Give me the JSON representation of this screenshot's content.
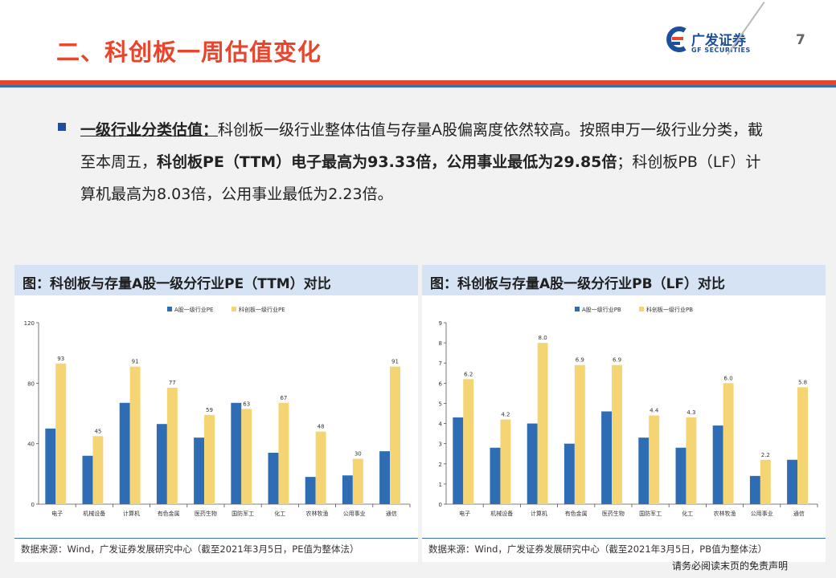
{
  "header": {
    "title": "二、科创板一周估值变化",
    "logo_cn": "广发证券",
    "logo_en": "GF SECURITIES",
    "page_number": "7"
  },
  "bullet": {
    "label": "一级行业分类估值：",
    "text1": "科创板一级行业整体估值与存量A股偏离度依然较高。按照申万一级行业分类，截至本周五，",
    "bold": "科创板PE（TTM）电子最高为93.33倍，公用事业最低为29.85倍",
    "text2": "；科创板PB（LF）计算机最高为8.03倍，公用事业最低为2.23倍。"
  },
  "chart_data": [
    {
      "type": "bar",
      "title": "图：科创板与存量A股一级分行业PE（TTM）对比",
      "categories": [
        "电子",
        "机械设备",
        "计算机",
        "有色金属",
        "医药生物",
        "国防军工",
        "化工",
        "农林牧渔",
        "公用事业",
        "通信"
      ],
      "series": [
        {
          "name": "A股一级行业PE",
          "color": "#2e6db4",
          "values": [
            50,
            32,
            67,
            53,
            44,
            67,
            34,
            18,
            19,
            35
          ]
        },
        {
          "name": "科创板一级行业PE",
          "color": "#f5d474",
          "values": [
            93,
            45,
            91,
            77,
            59,
            63,
            67,
            48,
            30,
            91
          ],
          "labels": [
            "93",
            "45",
            "91",
            "77",
            "59",
            "63",
            "67",
            "48",
            "30",
            "91"
          ]
        }
      ],
      "ylim": [
        0,
        120
      ],
      "yticks": [
        "0",
        "40",
        "80",
        "120"
      ],
      "legend": "top",
      "source": "数据来源：Wind，广发证券发展研究中心（截至2021年3月5日，PE值为整体法）"
    },
    {
      "type": "bar",
      "title": "图：科创板与存量A股一级分行业PB（LF）对比",
      "categories": [
        "电子",
        "机械设备",
        "计算机",
        "有色金属",
        "医药生物",
        "国防军工",
        "化工",
        "农林牧渔",
        "公用事业",
        "通信"
      ],
      "series": [
        {
          "name": "A股一级行业PB",
          "color": "#2e6db4",
          "values": [
            4.3,
            2.8,
            4.0,
            3.0,
            4.6,
            3.3,
            2.8,
            3.9,
            1.4,
            2.2
          ]
        },
        {
          "name": "科创板一级行业PB",
          "color": "#f5d474",
          "values": [
            6.2,
            4.2,
            8.0,
            6.9,
            6.9,
            4.4,
            4.3,
            6.0,
            2.2,
            5.8
          ],
          "labels": [
            "6.2",
            "4.2",
            "8.0",
            "6.9",
            "6.9",
            "4.4",
            "4.3",
            "6.0",
            "2.2",
            "5.8"
          ]
        }
      ],
      "ylim": [
        0,
        9
      ],
      "yticks": [
        "0",
        "1",
        "2",
        "3",
        "4",
        "5",
        "6",
        "7",
        "8",
        "9"
      ],
      "legend": "top",
      "source": "数据来源：Wind，广发证券发展研究中心（截至2021年3月5日，PB值为整体法）"
    }
  ],
  "footer": {
    "disclaimer": "请务必阅读末页的免责声明"
  }
}
